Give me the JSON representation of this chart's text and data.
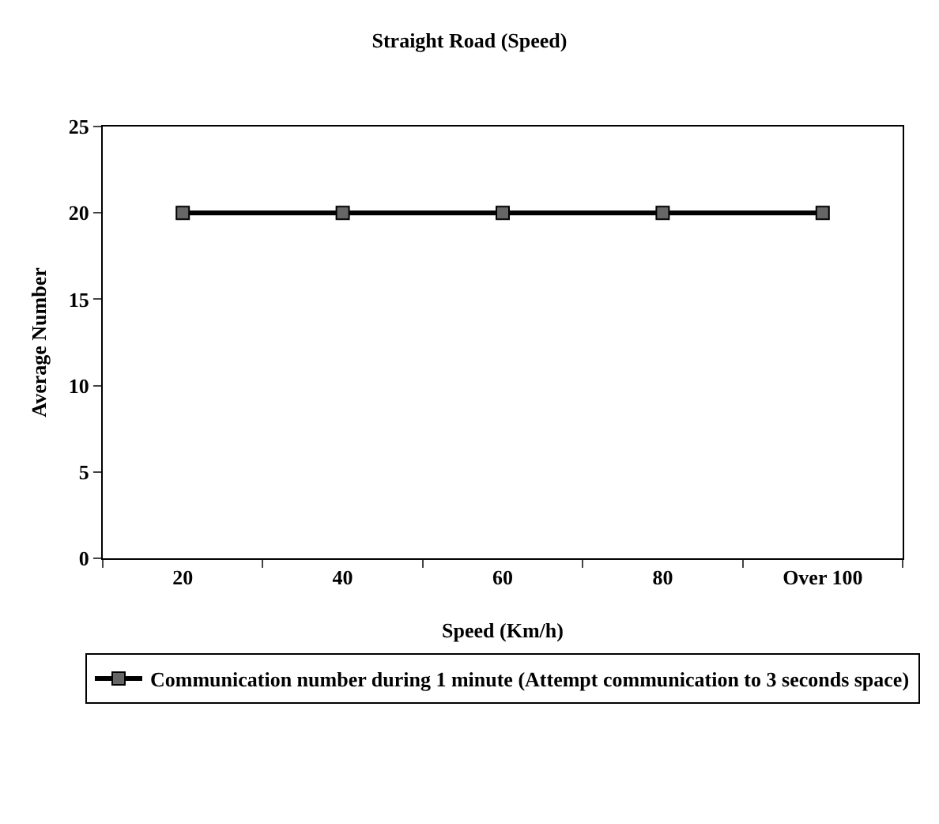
{
  "chart_data": {
    "type": "line",
    "title": "Straight Road (Speed)",
    "xlabel": "Speed (Km/h)",
    "ylabel": "Average Number",
    "categories": [
      "20",
      "40",
      "60",
      "80",
      "Over 100"
    ],
    "series": [
      {
        "name": "Communication number during 1 minute (Attempt communication to 3 seconds space)",
        "color": "#000000",
        "values": [
          20,
          20,
          20,
          20,
          20
        ]
      }
    ],
    "ylim": [
      0,
      25
    ],
    "yticks": [
      0,
      5,
      10,
      15,
      20,
      25
    ],
    "grid": false,
    "legend": "bottom",
    "marker": "square",
    "line_style": "solid"
  }
}
